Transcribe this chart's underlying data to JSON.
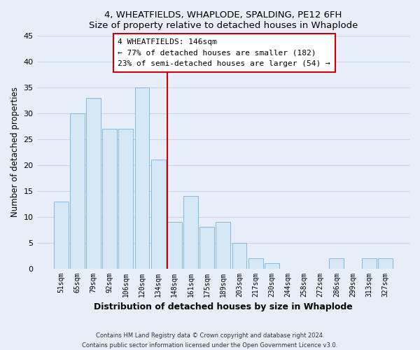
{
  "title": "4, WHEATFIELDS, WHAPLODE, SPALDING, PE12 6FH",
  "subtitle": "Size of property relative to detached houses in Whaplode",
  "xlabel": "Distribution of detached houses by size in Whaplode",
  "ylabel": "Number of detached properties",
  "bar_color": "#d6e8f5",
  "bar_edge_color": "#7ab0d4",
  "categories": [
    "51sqm",
    "65sqm",
    "79sqm",
    "92sqm",
    "106sqm",
    "120sqm",
    "134sqm",
    "148sqm",
    "161sqm",
    "175sqm",
    "189sqm",
    "203sqm",
    "217sqm",
    "230sqm",
    "244sqm",
    "258sqm",
    "272sqm",
    "286sqm",
    "299sqm",
    "313sqm",
    "327sqm"
  ],
  "values": [
    13,
    30,
    33,
    27,
    27,
    35,
    21,
    9,
    14,
    8,
    9,
    5,
    2,
    1,
    0,
    0,
    0,
    2,
    0,
    2,
    2
  ],
  "ylim": [
    0,
    45
  ],
  "yticks": [
    0,
    5,
    10,
    15,
    20,
    25,
    30,
    35,
    40,
    45
  ],
  "vline_color": "#cc0000",
  "annotation_title": "4 WHEATFIELDS: 146sqm",
  "annotation_line1": "← 77% of detached houses are smaller (182)",
  "annotation_line2": "23% of semi-detached houses are larger (54) →",
  "annotation_box_color": "#ffffff",
  "annotation_box_edge": "#cc0000",
  "footer1": "Contains HM Land Registry data © Crown copyright and database right 2024.",
  "footer2": "Contains public sector information licensed under the Open Government Licence v3.0.",
  "background_color": "#e8eef8",
  "grid_color": "#c8d4e8"
}
